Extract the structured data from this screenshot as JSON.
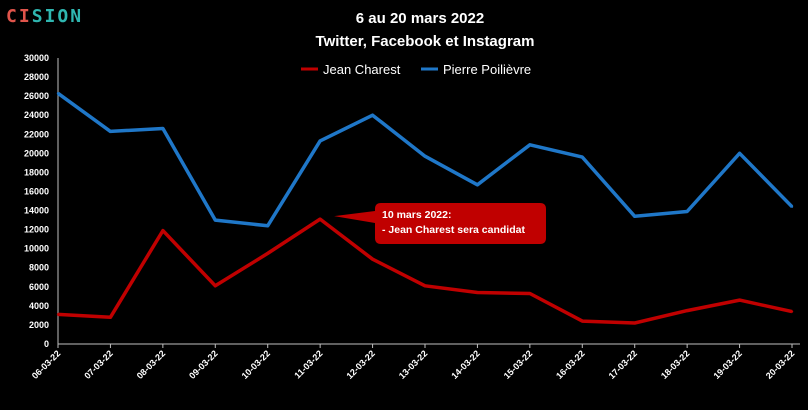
{
  "brand": {
    "logo_a": "CI",
    "logo_b": "SION",
    "color_a": "#e0544b",
    "color_b": "#2fb6b0"
  },
  "chart_data": {
    "type": "line",
    "title": "6 au 20 mars 2022",
    "subtitle": "Twitter, Facebook et Instagram",
    "categories": [
      "06-03-22",
      "07-03-22",
      "08-03-22",
      "09-03-22",
      "10-03-22",
      "11-03-22",
      "12-03-22",
      "13-03-22",
      "14-03-22",
      "15-03-22",
      "16-03-22",
      "17-03-22",
      "18-03-22",
      "19-03-22",
      "20-03-22"
    ],
    "series": [
      {
        "name": "Jean Charest",
        "color": "#c00000",
        "values": [
          3100,
          2800,
          11900,
          6100,
          9500,
          13100,
          8900,
          6100,
          5400,
          5300,
          2400,
          2200,
          3500,
          4600,
          3400
        ]
      },
      {
        "name": "Pierre Poilièvre",
        "color": "#1f77c8",
        "values": [
          26300,
          22300,
          22600,
          13000,
          12400,
          21300,
          24000,
          19700,
          16700,
          20900,
          19600,
          13400,
          13900,
          20000,
          14400
        ]
      }
    ],
    "ylim": [
      0,
      30000
    ],
    "yticks": [
      0,
      2000,
      4000,
      6000,
      8000,
      10000,
      12000,
      14000,
      16000,
      18000,
      20000,
      22000,
      24000,
      26000,
      28000,
      30000
    ],
    "grid": false,
    "legend": "top-center",
    "annotation": {
      "lines": [
        "10 mars 2022:",
        "- Jean Charest sera candidat"
      ],
      "color": "#c00000",
      "points_to": "11-03-22"
    }
  }
}
